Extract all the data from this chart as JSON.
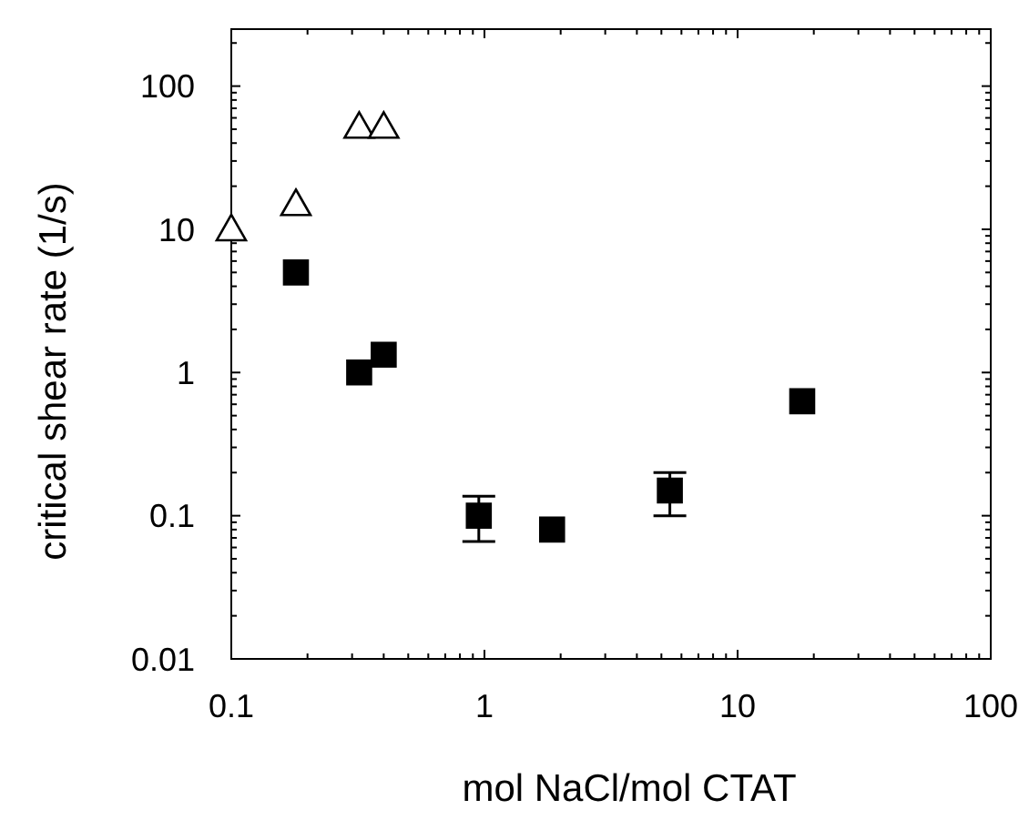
{
  "chart_data": {
    "type": "scatter",
    "xlabel": "mol NaCl/mol CTAT",
    "ylabel": "critical shear rate (1/s)",
    "log": "xy",
    "xlim": [
      0.1,
      100
    ],
    "ylim": [
      0.01,
      250
    ],
    "xticks": [
      {
        "value": 0.1,
        "label": "0.1"
      },
      {
        "value": 0.2,
        "label": null
      },
      {
        "value": 0.3,
        "label": null
      },
      {
        "value": 0.4,
        "label": null
      },
      {
        "value": 0.5,
        "label": null
      },
      {
        "value": 0.6,
        "label": null
      },
      {
        "value": 0.7,
        "label": null
      },
      {
        "value": 0.8,
        "label": null
      },
      {
        "value": 0.9,
        "label": null
      },
      1,
      {
        "value": 2,
        "label": null
      },
      {
        "value": 3,
        "label": null
      },
      {
        "value": 4,
        "label": null
      },
      {
        "value": 5,
        "label": null
      },
      {
        "value": 6,
        "label": null
      },
      {
        "value": 7,
        "label": null
      },
      {
        "value": 8,
        "label": null
      },
      {
        "value": 9,
        "label": null
      },
      10,
      {
        "value": 20,
        "label": null
      },
      {
        "value": 30,
        "label": null
      },
      {
        "value": 40,
        "label": null
      },
      {
        "value": 50,
        "label": null
      },
      {
        "value": 60,
        "label": null
      },
      {
        "value": 70,
        "label": null
      },
      {
        "value": 80,
        "label": null
      },
      {
        "value": 90,
        "label": null
      },
      100
    ],
    "yticks": [
      {
        "value": 0.01,
        "label": "0.01"
      },
      {
        "value": 0.02,
        "label": null
      },
      {
        "value": 0.03,
        "label": null
      },
      {
        "value": 0.04,
        "label": null
      },
      {
        "value": 0.05,
        "label": null
      },
      {
        "value": 0.06,
        "label": null
      },
      {
        "value": 0.07,
        "label": null
      },
      {
        "value": 0.08,
        "label": null
      },
      {
        "value": 0.09,
        "label": null
      },
      {
        "value": 0.1,
        "label": "0.1"
      },
      {
        "value": 0.2,
        "label": null
      },
      {
        "value": 0.3,
        "label": null
      },
      {
        "value": 0.4,
        "label": null
      },
      {
        "value": 0.5,
        "label": null
      },
      {
        "value": 0.6,
        "label": null
      },
      {
        "value": 0.7,
        "label": null
      },
      {
        "value": 0.8,
        "label": null
      },
      {
        "value": 0.9,
        "label": null
      },
      1,
      {
        "value": 2,
        "label": null
      },
      {
        "value": 3,
        "label": null
      },
      {
        "value": 4,
        "label": null
      },
      {
        "value": 5,
        "label": null
      },
      {
        "value": 6,
        "label": null
      },
      {
        "value": 7,
        "label": null
      },
      {
        "value": 8,
        "label": null
      },
      {
        "value": 9,
        "label": null
      },
      10,
      {
        "value": 20,
        "label": null
      },
      {
        "value": 30,
        "label": null
      },
      {
        "value": 40,
        "label": null
      },
      {
        "value": 50,
        "label": null
      },
      {
        "value": 60,
        "label": null
      },
      {
        "value": 70,
        "label": null
      },
      {
        "value": 80,
        "label": null
      },
      {
        "value": 90,
        "label": null
      },
      100,
      {
        "value": 200,
        "label": null
      }
    ],
    "series": [
      {
        "color": "#000000",
        "marker": "triangle",
        "x": [
          0.1,
          0.18,
          0.32,
          0.4
        ],
        "values": [
          10,
          15,
          52,
          52
        ]
      },
      {
        "color": "#000000",
        "marker": "square",
        "x": [
          0.18,
          0.32,
          0.4,
          0.95,
          1.85,
          5.4,
          18
        ],
        "values": [
          5,
          1,
          1.33,
          0.1,
          0.08,
          0.15,
          0.63
        ],
        "errors": [
          null,
          null,
          null,
          [
            0.066,
            0.137
          ],
          null,
          [
            0.1,
            0.2
          ],
          null
        ]
      }
    ]
  }
}
